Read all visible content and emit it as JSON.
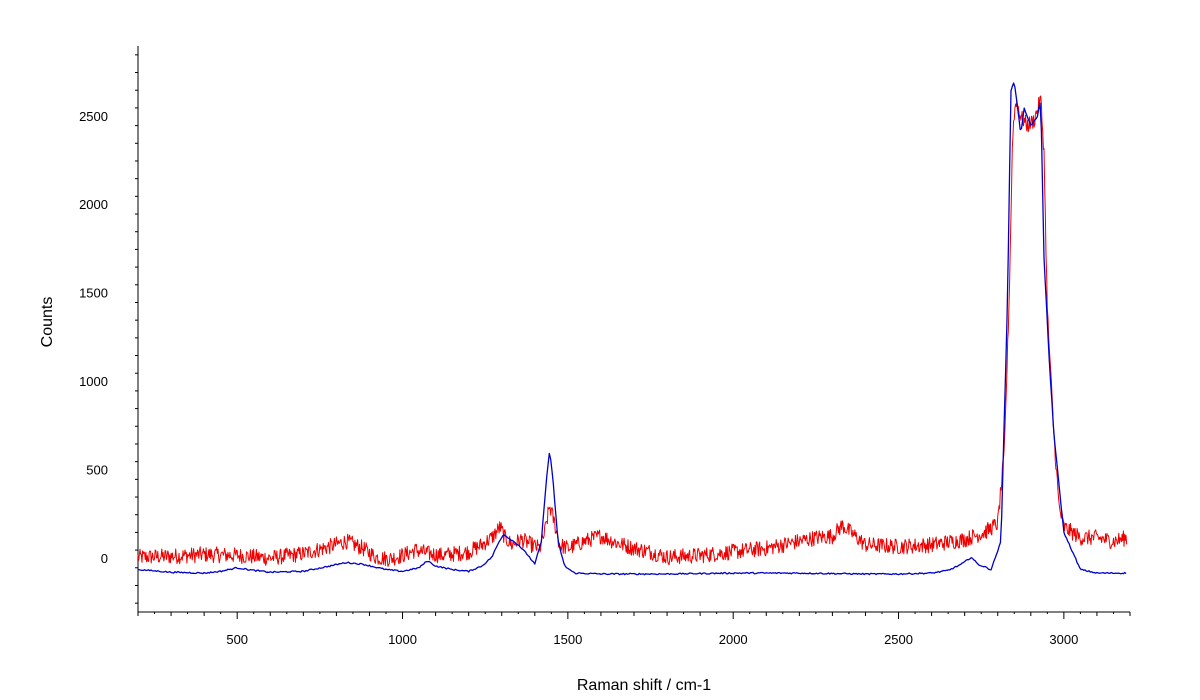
{
  "chart_data": {
    "type": "line",
    "xlabel": "Raman shift / cm-1",
    "ylabel": "Counts",
    "xlim": [
      200,
      3200
    ],
    "ylim": [
      -300,
      2900
    ],
    "x_ticks": [
      500,
      1000,
      1500,
      2000,
      2500,
      3000
    ],
    "y_ticks": [
      0,
      500,
      1000,
      1500,
      2000,
      2500
    ],
    "grid": false,
    "series": [
      {
        "color": "#ee0000",
        "x": [
          200,
          300,
          400,
          500,
          600,
          700,
          780,
          830,
          880,
          920,
          960,
          1000,
          1040,
          1080,
          1120,
          1160,
          1200,
          1240,
          1270,
          1295,
          1310,
          1330,
          1360,
          1390,
          1415,
          1430,
          1445,
          1460,
          1475,
          1500,
          1550,
          1600,
          1650,
          1700,
          1750,
          1800,
          1900,
          2000,
          2100,
          2200,
          2250,
          2300,
          2330,
          2400,
          2500,
          2600,
          2700,
          2760,
          2800,
          2820,
          2835,
          2845,
          2855,
          2870,
          2890,
          2910,
          2930,
          2940,
          2950,
          2970,
          2985,
          3000,
          3050,
          3100,
          3150,
          3190
        ],
        "values": [
          10,
          15,
          25,
          20,
          5,
          30,
          70,
          100,
          60,
          10,
          0,
          20,
          50,
          30,
          20,
          30,
          40,
          80,
          120,
          180,
          120,
          80,
          110,
          80,
          60,
          150,
          300,
          200,
          80,
          60,
          100,
          130,
          90,
          60,
          40,
          10,
          20,
          40,
          60,
          100,
          120,
          130,
          190,
          80,
          70,
          80,
          110,
          150,
          200,
          600,
          1500,
          2400,
          2600,
          2500,
          2450,
          2480,
          2600,
          2300,
          1400,
          700,
          300,
          180,
          120,
          120,
          100,
          120
        ]
      },
      {
        "color": "#0000cc",
        "x": [
          200,
          300,
          400,
          450,
          500,
          550,
          600,
          700,
          780,
          830,
          880,
          950,
          1000,
          1050,
          1075,
          1100,
          1150,
          1200,
          1240,
          1270,
          1290,
          1305,
          1320,
          1350,
          1380,
          1400,
          1420,
          1435,
          1445,
          1455,
          1470,
          1490,
          1520,
          1600,
          1800,
          2000,
          2200,
          2400,
          2500,
          2600,
          2650,
          2690,
          2720,
          2740,
          2780,
          2810,
          2830,
          2840,
          2850,
          2860,
          2870,
          2880,
          2900,
          2920,
          2930,
          2940,
          2955,
          2970,
          3000,
          3050,
          3100,
          3190
        ],
        "values": [
          -60,
          -75,
          -80,
          -70,
          -50,
          -65,
          -75,
          -70,
          -40,
          -20,
          -30,
          -60,
          -70,
          -50,
          -10,
          -40,
          -60,
          -70,
          -40,
          10,
          90,
          140,
          120,
          80,
          20,
          -30,
          100,
          450,
          610,
          450,
          100,
          -40,
          -80,
          -85,
          -85,
          -80,
          -80,
          -85,
          -85,
          -80,
          -65,
          -30,
          10,
          -30,
          -60,
          100,
          1500,
          2650,
          2700,
          2550,
          2400,
          2550,
          2450,
          2500,
          2600,
          1700,
          1150,
          700,
          150,
          -60,
          -80,
          -80
        ]
      }
    ]
  }
}
